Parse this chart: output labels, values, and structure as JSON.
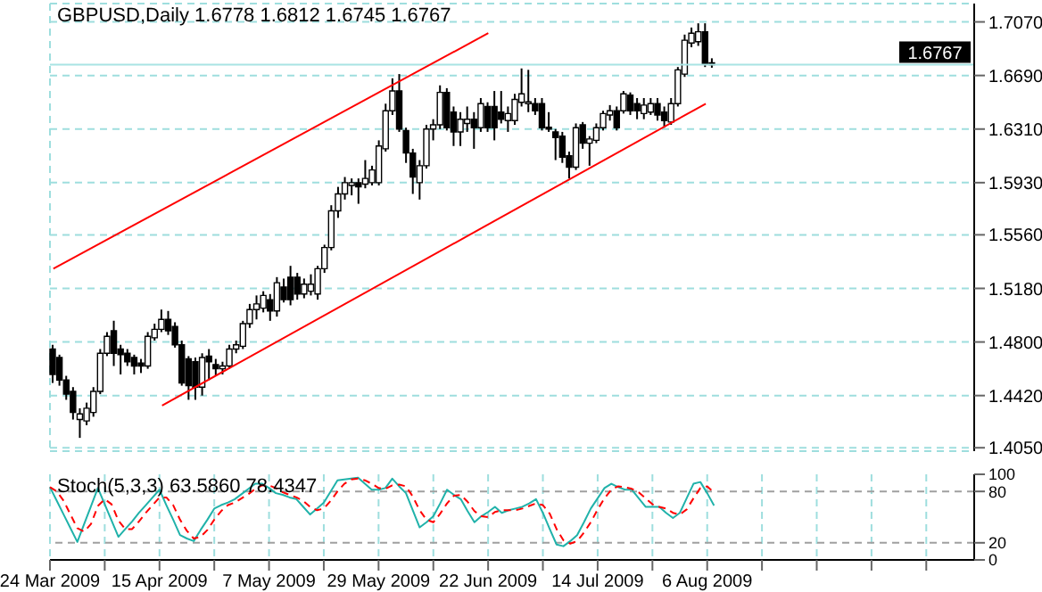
{
  "chart_data": [
    {
      "type": "candlestick",
      "title": "GBPUSD,Daily 1.6778 1.6812 1.6745 1.6767",
      "categories": [
        "24 Mar 2009",
        null,
        null,
        null,
        null,
        null,
        null,
        null,
        null,
        null,
        null,
        null,
        null,
        null,
        null,
        null,
        "15 Apr 2009",
        null,
        null,
        null,
        null,
        null,
        null,
        null,
        null,
        null,
        null,
        null,
        null,
        null,
        null,
        null,
        "7 May 2009",
        null,
        null,
        null,
        null,
        null,
        null,
        null,
        null,
        null,
        null,
        null,
        null,
        null,
        null,
        null,
        "29 May 2009",
        null,
        null,
        null,
        null,
        null,
        null,
        null,
        null,
        null,
        null,
        null,
        null,
        null,
        null,
        null,
        "22 Jun 2009",
        null,
        null,
        null,
        null,
        null,
        null,
        null,
        null,
        null,
        null,
        null,
        null,
        null,
        null,
        null,
        "14 Jul 2009",
        null,
        null,
        null,
        null,
        null,
        null,
        null,
        null,
        null,
        null,
        null,
        null,
        null,
        null,
        null,
        "6 Aug 2009",
        null,
        null,
        null,
        null,
        null,
        null,
        null,
        null,
        null,
        null,
        null,
        null,
        null,
        null,
        null,
        null,
        null,
        null,
        null,
        null,
        null,
        null,
        null,
        null,
        null,
        null,
        null,
        null,
        null,
        null,
        null,
        null,
        null,
        null,
        null,
        null,
        null,
        null,
        null
      ],
      "ohlc": [
        [
          1.475,
          1.478,
          1.451,
          1.457
        ],
        [
          1.469,
          1.471,
          1.449,
          1.453
        ],
        [
          1.453,
          1.456,
          1.439,
          1.443
        ],
        [
          1.445,
          1.448,
          1.425,
          1.43
        ],
        [
          1.425,
          1.433,
          1.412,
          1.429
        ],
        [
          1.424,
          1.437,
          1.421,
          1.433
        ],
        [
          1.43,
          1.448,
          1.427,
          1.445
        ],
        [
          1.445,
          1.475,
          1.443,
          1.472
        ],
        [
          1.472,
          1.487,
          1.47,
          1.484
        ],
        [
          1.488,
          1.495,
          1.463,
          1.472
        ],
        [
          1.475,
          1.478,
          1.457,
          1.471
        ],
        [
          1.472,
          1.475,
          1.463,
          1.466
        ],
        [
          1.469,
          1.471,
          1.457,
          1.463
        ],
        [
          1.465,
          1.468,
          1.458,
          1.463
        ],
        [
          1.463,
          1.487,
          1.461,
          1.484
        ],
        [
          1.483,
          1.493,
          1.481,
          1.489
        ],
        [
          1.489,
          1.503,
          1.487,
          1.496
        ],
        [
          1.496,
          1.502,
          1.485,
          1.488
        ],
        [
          1.491,
          1.494,
          1.476,
          1.478
        ],
        [
          1.478,
          1.481,
          1.449,
          1.451
        ],
        [
          1.468,
          1.47,
          1.439,
          1.449
        ],
        [
          1.466,
          1.469,
          1.439,
          1.448
        ],
        [
          1.448,
          1.472,
          1.442,
          1.469
        ],
        [
          1.47,
          1.475,
          1.453,
          1.466
        ],
        [
          1.464,
          1.468,
          1.456,
          1.461
        ],
        [
          1.461,
          1.466,
          1.457,
          1.463
        ],
        [
          1.463,
          1.478,
          1.461,
          1.475
        ],
        [
          1.475,
          1.481,
          1.472,
          1.478
        ],
        [
          1.477,
          1.495,
          1.475,
          1.493
        ],
        [
          1.493,
          1.507,
          1.49,
          1.503
        ],
        [
          1.503,
          1.513,
          1.496,
          1.507
        ],
        [
          1.504,
          1.516,
          1.501,
          1.513
        ],
        [
          1.51,
          1.514,
          1.495,
          1.502
        ],
        [
          1.502,
          1.526,
          1.498,
          1.522
        ],
        [
          1.519,
          1.525,
          1.508,
          1.51
        ],
        [
          1.526,
          1.534,
          1.506,
          1.51
        ],
        [
          1.526,
          1.529,
          1.51,
          1.514
        ],
        [
          1.514,
          1.525,
          1.511,
          1.521
        ],
        [
          1.516,
          1.528,
          1.513,
          1.521
        ],
        [
          1.514,
          1.534,
          1.51,
          1.532
        ],
        [
          1.532,
          1.549,
          1.529,
          1.547
        ],
        [
          1.547,
          1.577,
          1.545,
          1.573
        ],
        [
          1.573,
          1.59,
          1.568,
          1.585
        ],
        [
          1.585,
          1.597,
          1.581,
          1.593
        ],
        [
          1.591,
          1.596,
          1.584,
          1.593
        ],
        [
          1.593,
          1.596,
          1.578,
          1.59
        ],
        [
          1.592,
          1.609,
          1.589,
          1.596
        ],
        [
          1.593,
          1.605,
          1.591,
          1.602
        ],
        [
          1.593,
          1.623,
          1.591,
          1.619
        ],
        [
          1.617,
          1.649,
          1.615,
          1.644
        ],
        [
          1.644,
          1.667,
          1.641,
          1.658
        ],
        [
          1.658,
          1.67,
          1.629,
          1.631
        ],
        [
          1.63,
          1.632,
          1.607,
          1.614
        ],
        [
          1.614,
          1.617,
          1.585,
          1.597
        ],
        [
          1.593,
          1.609,
          1.581,
          1.605
        ],
        [
          1.605,
          1.634,
          1.603,
          1.631
        ],
        [
          1.631,
          1.638,
          1.623,
          1.634
        ],
        [
          1.634,
          1.662,
          1.631,
          1.657
        ],
        [
          1.657,
          1.66,
          1.63,
          1.632
        ],
        [
          1.643,
          1.647,
          1.619,
          1.629
        ],
        [
          1.629,
          1.643,
          1.619,
          1.638
        ],
        [
          1.635,
          1.647,
          1.629,
          1.638
        ],
        [
          1.638,
          1.643,
          1.617,
          1.632
        ],
        [
          1.632,
          1.653,
          1.629,
          1.649
        ],
        [
          1.647,
          1.65,
          1.629,
          1.632
        ],
        [
          1.647,
          1.658,
          1.623,
          1.632
        ],
        [
          1.643,
          1.658,
          1.635,
          1.638
        ],
        [
          1.637,
          1.647,
          1.629,
          1.642
        ],
        [
          1.637,
          1.656,
          1.634,
          1.652
        ],
        [
          1.65,
          1.674,
          1.647,
          1.656
        ],
        [
          1.649,
          1.673,
          1.643,
          1.65
        ],
        [
          1.649,
          1.653,
          1.641,
          1.644
        ],
        [
          1.649,
          1.653,
          1.63,
          1.632
        ],
        [
          1.632,
          1.643,
          1.629,
          1.631
        ],
        [
          1.629,
          1.631,
          1.609,
          1.625
        ],
        [
          1.626,
          1.629,
          1.607,
          1.611
        ],
        [
          1.612,
          1.615,
          1.596,
          1.604
        ],
        [
          1.604,
          1.635,
          1.602,
          1.632
        ],
        [
          1.634,
          1.636,
          1.617,
          1.621
        ],
        [
          1.621,
          1.626,
          1.605,
          1.624
        ],
        [
          1.623,
          1.635,
          1.621,
          1.632
        ],
        [
          1.632,
          1.644,
          1.63,
          1.642
        ],
        [
          1.641,
          1.648,
          1.637,
          1.644
        ],
        [
          1.644,
          1.647,
          1.63,
          1.632
        ],
        [
          1.644,
          1.658,
          1.642,
          1.656
        ],
        [
          1.655,
          1.657,
          1.641,
          1.644
        ],
        [
          1.649,
          1.653,
          1.638,
          1.644
        ],
        [
          1.642,
          1.653,
          1.638,
          1.648
        ],
        [
          1.643,
          1.653,
          1.641,
          1.649
        ],
        [
          1.649,
          1.653,
          1.637,
          1.641
        ],
        [
          1.643,
          1.647,
          1.632,
          1.637
        ],
        [
          1.636,
          1.653,
          1.634,
          1.649
        ],
        [
          1.649,
          1.675,
          1.647,
          1.673
        ],
        [
          1.67,
          1.698,
          1.668,
          1.694
        ],
        [
          1.692,
          1.703,
          1.689,
          1.699
        ],
        [
          1.693,
          1.706,
          1.69,
          1.7
        ],
        [
          1.7,
          1.706,
          1.675,
          1.677
        ],
        [
          1.6778,
          1.6812,
          1.6745,
          1.6767
        ],
        null,
        null,
        null,
        null,
        null,
        null,
        null,
        null,
        null,
        null,
        null,
        null,
        null,
        null,
        null,
        null,
        null,
        null,
        null,
        null,
        null,
        null,
        null,
        null,
        null,
        null,
        null,
        null,
        null,
        null,
        null,
        null,
        null,
        null,
        null,
        null,
        null,
        null
      ],
      "series": [
        {
          "type": "line",
          "color": "#ff0000",
          "x": [
            "24 Mar 2009",
            "22 Jun 2009"
          ],
          "values": [
            1.532,
            1.699
          ]
        },
        {
          "type": "line",
          "color": "#ff0000",
          "x": [
            "15 Apr 2009",
            "6 Aug 2009"
          ],
          "values": [
            1.435,
            1.649
          ]
        }
      ],
      "ref_lines": [
        {
          "axis": "y",
          "value": 1.6767,
          "label": "1.6767",
          "color": "#a8e4e4"
        }
      ],
      "ylim": [
        1.4026,
        1.72
      ],
      "yticks": [
        {
          "value": 1.405,
          "label": "1.4050"
        },
        {
          "value": 1.442,
          "label": "1.4420"
        },
        {
          "value": 1.48,
          "label": "1.4800"
        },
        {
          "value": 1.518,
          "label": "1.5180"
        },
        {
          "value": 1.556,
          "label": "1.5560"
        },
        {
          "value": 1.593,
          "label": "1.5930"
        },
        {
          "value": 1.631,
          "label": "1.6310"
        },
        {
          "value": 1.669,
          "label": "1.6690"
        },
        {
          "value": 1.707,
          "label": "1.7070"
        }
      ],
      "grid": true,
      "tick_labels": "y"
    },
    {
      "type": "line",
      "title": "Stoch(5,3,3) 63.5860 78.4347",
      "categories": [
        "24 Mar 2009",
        null,
        null,
        null,
        null,
        null,
        null,
        null,
        null,
        null,
        null,
        null,
        null,
        null,
        null,
        null,
        "15 Apr 2009",
        null,
        null,
        null,
        null,
        null,
        null,
        null,
        null,
        null,
        null,
        null,
        null,
        null,
        null,
        null,
        "7 May 2009",
        null,
        null,
        null,
        null,
        null,
        null,
        null,
        null,
        null,
        null,
        null,
        null,
        null,
        null,
        null,
        "29 May 2009",
        null,
        null,
        null,
        null,
        null,
        null,
        null,
        null,
        null,
        null,
        null,
        null,
        null,
        null,
        null,
        "22 Jun 2009",
        null,
        null,
        null,
        null,
        null,
        null,
        null,
        null,
        null,
        null,
        null,
        null,
        null,
        null,
        null,
        "14 Jul 2009",
        null,
        null,
        null,
        null,
        null,
        null,
        null,
        null,
        null,
        null,
        null,
        null,
        null,
        null,
        null,
        "6 Aug 2009",
        null,
        null,
        null,
        null,
        null,
        null,
        null,
        null,
        null,
        null,
        null,
        null,
        null,
        null,
        null,
        null,
        null,
        null,
        null,
        null,
        null,
        null,
        null,
        null,
        null,
        null,
        null,
        null,
        null,
        null,
        null,
        null,
        null,
        null,
        null,
        null,
        null,
        null,
        null
      ],
      "series": [
        {
          "color": "#20b2aa",
          "line_style": "solid",
          "values": [
            85,
            69,
            53,
            37,
            21,
            42,
            63,
            84,
            65,
            46,
            27,
            36,
            45,
            55,
            64,
            73,
            82,
            64,
            47,
            29,
            25,
            22,
            35,
            47,
            60,
            64,
            67,
            71,
            77,
            83,
            89,
            89,
            84,
            78,
            76,
            73,
            71,
            62,
            53,
            60,
            67,
            80,
            93,
            94,
            95,
            96,
            89,
            82,
            82,
            84,
            95,
            86,
            78,
            58,
            38,
            44,
            51,
            66,
            82,
            76,
            71,
            57,
            44,
            51,
            56,
            62,
            55,
            58,
            60,
            62,
            66,
            71,
            55,
            36,
            18,
            16,
            22,
            29,
            44,
            60,
            72,
            84,
            89,
            85,
            82,
            82,
            72,
            62,
            62,
            62,
            55,
            49,
            55,
            72,
            89,
            91,
            78,
            63.586,
            null,
            null,
            null,
            null,
            null,
            null,
            null,
            null,
            null,
            null,
            null,
            null,
            null,
            null,
            null,
            null,
            null,
            null,
            null,
            null,
            null,
            null,
            null,
            null,
            null,
            null,
            null,
            null,
            null,
            null,
            null,
            null,
            null,
            null,
            null,
            null,
            null,
            null
          ]
        },
        {
          "color": "#ff0000",
          "line_style": "dashed",
          "values": [
            85,
            80,
            69,
            53,
            37,
            33,
            42,
            63,
            71,
            65,
            46,
            36,
            36,
            45,
            55,
            64,
            73,
            73,
            64,
            47,
            34,
            25,
            27,
            35,
            47,
            57,
            64,
            67,
            72,
            77,
            83,
            87,
            87,
            84,
            79,
            76,
            73,
            69,
            62,
            58,
            60,
            69,
            80,
            89,
            94,
            95,
            93,
            89,
            84,
            83,
            87,
            88,
            86,
            74,
            58,
            47,
            44,
            54,
            66,
            75,
            76,
            68,
            57,
            51,
            50,
            56,
            58,
            58,
            58,
            60,
            63,
            66,
            64,
            54,
            36,
            23,
            19,
            22,
            32,
            44,
            59,
            72,
            82,
            86,
            85,
            83,
            79,
            72,
            65,
            62,
            60,
            55,
            53,
            59,
            72,
            84,
            86,
            78.4347,
            null,
            null,
            null,
            null,
            null,
            null,
            null,
            null,
            null,
            null,
            null,
            null,
            null,
            null,
            null,
            null,
            null,
            null,
            null,
            null,
            null,
            null,
            null,
            null,
            null,
            null,
            null,
            null,
            null,
            null,
            null,
            null,
            null,
            null,
            null,
            null,
            null,
            null
          ]
        }
      ],
      "ref_lines": [
        {
          "axis": "y",
          "value": 20,
          "color": "#a0a0a0",
          "line_style": "dashed"
        },
        {
          "axis": "y",
          "value": 80,
          "color": "#a0a0a0",
          "line_style": "dashed"
        }
      ],
      "ylim": [
        0,
        100
      ],
      "yticks": [
        0,
        20,
        80,
        100
      ],
      "grid": "x"
    }
  ]
}
